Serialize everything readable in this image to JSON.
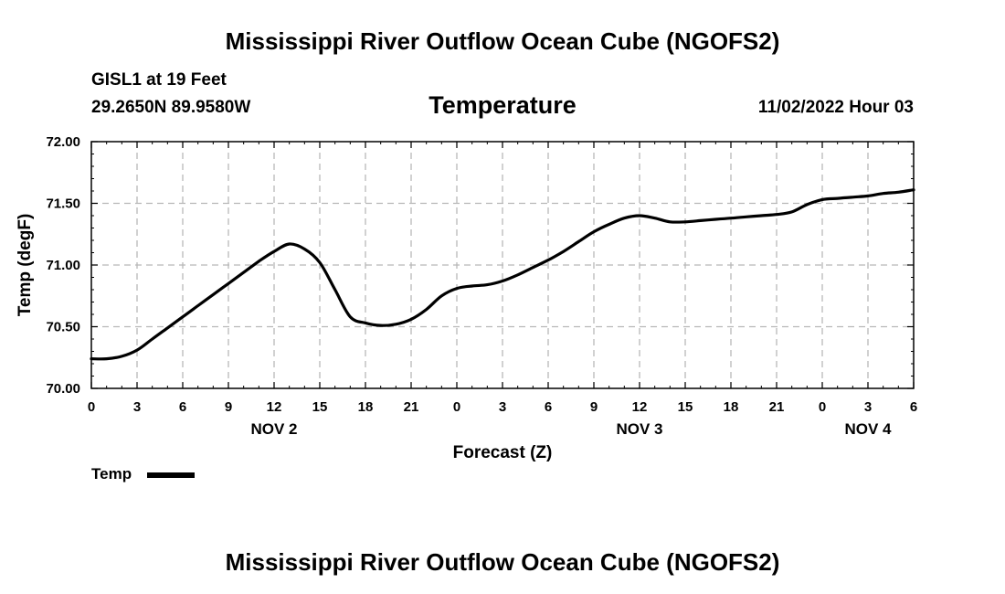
{
  "header": {
    "title": "Mississippi River Outflow Ocean Cube (NGOFS2)",
    "station": "GISL1 at 19 Feet",
    "coords": "29.2650N  89.9580W",
    "date": "11/02/2022 Hour 03"
  },
  "footer": {
    "title": "Mississippi River Outflow Ocean Cube (NGOFS2)"
  },
  "chart_data": {
    "type": "line",
    "title": "Temperature",
    "xlabel": "Forecast (Z)",
    "ylabel": "Temp (degF)",
    "xlim": [
      0,
      54
    ],
    "ylim": [
      70.0,
      72.0
    ],
    "grid": true,
    "yticks": [
      "70.00",
      "70.50",
      "71.00",
      "71.50",
      "72.00"
    ],
    "xticks": [
      "0",
      "3",
      "6",
      "9",
      "12",
      "15",
      "18",
      "21",
      "0",
      "3",
      "6",
      "9",
      "12",
      "15",
      "18",
      "21",
      "0",
      "3",
      "6"
    ],
    "day_labels": [
      {
        "label": "NOV 2",
        "hour": 12
      },
      {
        "label": "NOV 3",
        "hour": 36
      },
      {
        "label": "NOV 4",
        "hour": 51
      }
    ],
    "legend": {
      "position": "bottom-left",
      "entries": [
        "Temp"
      ]
    },
    "series": [
      {
        "name": "Temp",
        "x": [
          0,
          1,
          2,
          3,
          4,
          5,
          6,
          7,
          8,
          9,
          10,
          11,
          12,
          13,
          14,
          15,
          16,
          17,
          18,
          19,
          20,
          21,
          22,
          23,
          24,
          25,
          26,
          27,
          28,
          29,
          30,
          31,
          32,
          33,
          34,
          35,
          36,
          37,
          38,
          39,
          40,
          41,
          42,
          43,
          44,
          45,
          46,
          47,
          48,
          49,
          50,
          51,
          52,
          53,
          54
        ],
        "values": [
          70.24,
          70.24,
          70.26,
          70.31,
          70.4,
          70.49,
          70.58,
          70.67,
          70.76,
          70.85,
          70.94,
          71.03,
          71.11,
          71.17,
          71.13,
          71.02,
          70.8,
          70.58,
          70.53,
          70.51,
          70.52,
          70.56,
          70.64,
          70.75,
          70.81,
          70.83,
          70.84,
          70.87,
          70.92,
          70.98,
          71.04,
          71.11,
          71.19,
          71.27,
          71.33,
          71.38,
          71.4,
          71.38,
          71.35,
          71.35,
          71.36,
          71.37,
          71.38,
          71.39,
          71.4,
          71.41,
          71.43,
          71.49,
          71.53,
          71.54,
          71.55,
          71.56,
          71.58,
          71.59,
          71.61
        ]
      }
    ]
  }
}
